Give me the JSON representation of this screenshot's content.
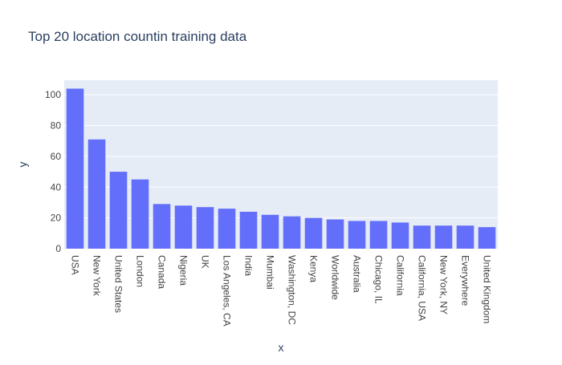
{
  "chart_data": {
    "type": "bar",
    "title": "Top 20 location countin training data",
    "xlabel": "x",
    "ylabel": "y",
    "categories": [
      "USA",
      "New York",
      "United States",
      "London",
      "Canada",
      "Nigeria",
      "UK",
      "Los Angeles, CA",
      "India",
      "Mumbai",
      "Washington, DC",
      "Kenya",
      "Worldwide",
      "Australia",
      "Chicago, IL",
      "California",
      "California, USA",
      "New York, NY",
      "Everywhere",
      "United Kingdom"
    ],
    "values": [
      104,
      71,
      50,
      45,
      29,
      28,
      27,
      26,
      24,
      22,
      21,
      20,
      19,
      18,
      18,
      17,
      15,
      15,
      15,
      14
    ],
    "ylim": [
      0,
      109.47
    ],
    "yticks": [
      0,
      20,
      40,
      60,
      80,
      100
    ],
    "grid": true,
    "legend": "none",
    "colors": {
      "bar": "#636efa",
      "plot_background": "#e5ecf6",
      "grid": "#ffffff",
      "text": "#2a3f5f",
      "tick_text": "#444444"
    }
  }
}
